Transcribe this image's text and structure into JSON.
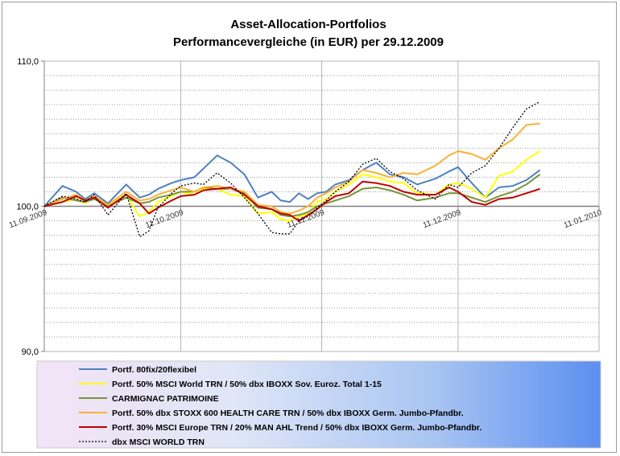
{
  "chart_data": {
    "type": "line",
    "title": [
      "Asset-Allocation-Portfolios",
      "Performancevergleiche (in EUR) per 29.12.2009"
    ],
    "xlabel": "",
    "ylabel": "",
    "ylim": [
      90,
      110
    ],
    "y_ticks": [
      90,
      100,
      110
    ],
    "y_tick_labels": [
      "90,0",
      "100,0",
      "110,0"
    ],
    "x_range": [
      0,
      122
    ],
    "x_ticks": [
      0,
      30,
      61,
      91,
      122
    ],
    "x_tick_labels": [
      "11.09.2009",
      "11.10.2009",
      "11.11.2009",
      "11.12.2009",
      "11.01.2010"
    ],
    "grid": true,
    "legend_position": "bottom",
    "x": [
      0,
      4,
      7,
      9,
      11,
      14,
      18,
      21,
      23,
      25,
      28,
      30,
      33,
      35,
      38,
      41,
      44,
      47,
      50,
      52,
      54,
      56,
      58,
      60,
      62,
      64,
      67,
      70,
      73,
      76,
      79,
      82,
      86,
      89,
      91,
      94,
      97,
      100,
      103,
      106,
      109
    ],
    "series": [
      {
        "name": "Portf. 80fix/20flexibel",
        "color": "#4f81bd",
        "dash": false,
        "values": [
          100.0,
          101.4,
          101.0,
          100.5,
          100.9,
          100.2,
          101.5,
          100.6,
          100.8,
          101.2,
          101.6,
          101.8,
          102.0,
          102.6,
          103.5,
          103.0,
          102.2,
          100.6,
          101.0,
          100.4,
          100.3,
          100.9,
          100.5,
          100.9,
          101.0,
          101.5,
          101.8,
          102.5,
          103.0,
          102.2,
          102.0,
          101.5,
          101.9,
          102.4,
          102.7,
          101.6,
          100.6,
          101.3,
          101.4,
          101.8,
          102.5
        ]
      },
      {
        "name": "Portf. 50% MSCI World TRN / 50% dbx IBOXX Sov. Euroz. Total 1-15",
        "color": "#ffff00",
        "dash": false,
        "values": [
          100.0,
          100.3,
          100.5,
          100.2,
          100.7,
          100.0,
          100.8,
          99.3,
          99.6,
          100.3,
          100.7,
          101.0,
          100.8,
          101.2,
          101.2,
          100.8,
          100.7,
          99.5,
          99.6,
          99.1,
          99.0,
          99.3,
          99.5,
          100.3,
          100.5,
          101.0,
          101.5,
          102.2,
          102.0,
          101.7,
          101.6,
          100.9,
          100.8,
          101.5,
          101.6,
          101.2,
          100.6,
          102.1,
          102.4,
          103.2,
          103.8
        ]
      },
      {
        "name": "CARMIGNAC PATRIMOINE",
        "color": "#77933c",
        "dash": false,
        "values": [
          100.0,
          100.6,
          100.4,
          100.3,
          100.5,
          100.0,
          100.6,
          100.2,
          100.3,
          100.6,
          100.8,
          101.0,
          101.0,
          101.3,
          101.2,
          101.2,
          100.9,
          99.9,
          99.8,
          99.4,
          99.3,
          99.4,
          99.6,
          100.0,
          100.2,
          100.4,
          100.7,
          101.2,
          101.3,
          101.1,
          100.8,
          100.4,
          100.6,
          100.9,
          100.9,
          100.6,
          100.3,
          100.7,
          101.0,
          101.5,
          102.2
        ]
      },
      {
        "name": "Portf. 50% dbx STOXX 600  HEALTH CARE TRN / 50% dbx IBOXX Germ. Jumbo-Pfandbr.",
        "color": "#f9b233",
        "dash": false,
        "values": [
          100.0,
          100.5,
          100.8,
          100.4,
          100.7,
          100.1,
          101.0,
          100.4,
          100.5,
          100.8,
          101.1,
          101.3,
          101.0,
          101.3,
          101.4,
          101.2,
          101.0,
          100.1,
          100.0,
          99.6,
          99.5,
          99.7,
          100.0,
          100.6,
          100.9,
          101.3,
          101.7,
          102.5,
          102.3,
          102.0,
          102.3,
          102.2,
          102.8,
          103.5,
          103.8,
          103.6,
          103.2,
          104.0,
          104.6,
          105.6,
          105.7
        ]
      },
      {
        "name": "Portf. 30% MSCI Europe TRN / 20% MAN AHL Trend / 50% dbx IBOXX Germ. Jumbo-Pfandbr.",
        "color": "#c00000",
        "dash": false,
        "values": [
          100.0,
          100.3,
          100.7,
          100.4,
          100.6,
          99.9,
          100.8,
          100.2,
          99.5,
          99.9,
          100.4,
          100.7,
          100.8,
          101.1,
          101.2,
          101.3,
          100.8,
          100.0,
          99.8,
          99.5,
          99.4,
          99.0,
          99.4,
          99.8,
          100.3,
          100.7,
          100.9,
          101.7,
          101.6,
          101.4,
          101.0,
          100.8,
          100.8,
          101.3,
          101.0,
          100.3,
          100.1,
          100.5,
          100.6,
          100.9,
          101.2
        ]
      },
      {
        "name": "dbx MSCI WORLD TRN",
        "color": "#000000",
        "dash": true,
        "values": [
          100.0,
          100.7,
          100.5,
          100.3,
          100.8,
          99.4,
          100.9,
          97.9,
          98.3,
          99.9,
          100.9,
          101.4,
          101.6,
          101.5,
          102.3,
          101.6,
          100.6,
          99.5,
          98.2,
          98.1,
          98.1,
          99.0,
          99.3,
          99.9,
          100.4,
          101.0,
          101.7,
          102.9,
          103.3,
          102.4,
          101.9,
          101.1,
          100.5,
          101.5,
          101.3,
          102.3,
          102.8,
          104.0,
          105.4,
          106.7,
          107.2
        ]
      }
    ]
  }
}
